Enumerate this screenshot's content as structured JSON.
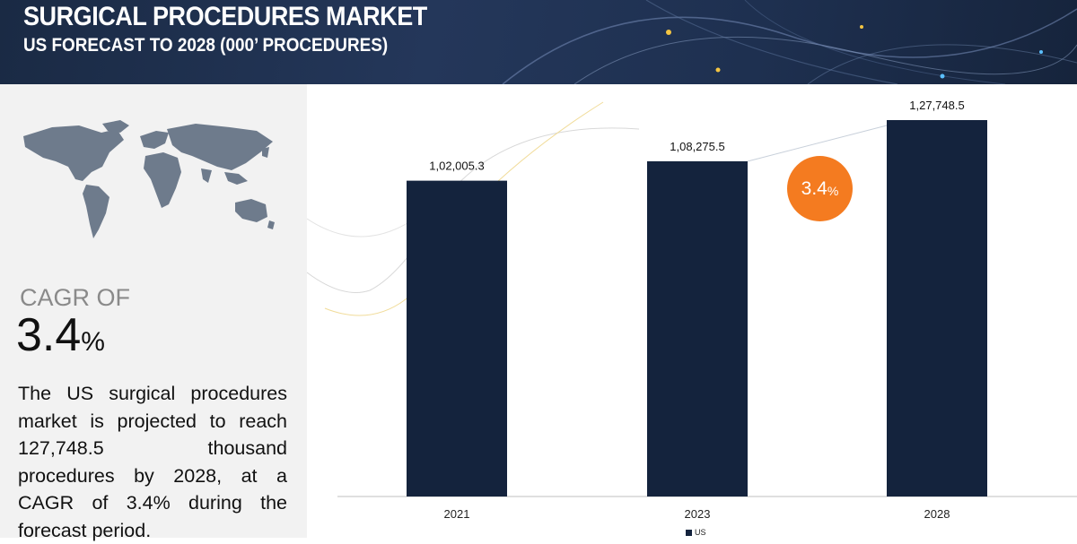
{
  "header": {
    "title": "SURGICAL PROCEDURES MARKET",
    "subtitle": "US FORECAST TO 2028 (000’ PROCEDURES)"
  },
  "left_panel": {
    "cagr_label": "CAGR OF",
    "cagr_value": "3.4",
    "cagr_unit": "%",
    "description": "The US surgical procedures market is projected to reach 127,748.5 thousand procedures by 2028, at a CAGR of 3.4% during the forecast period.",
    "map_icon": "world-map-icon"
  },
  "badge": {
    "value": "3.4",
    "unit": "%"
  },
  "colors": {
    "bar": "#14233d",
    "accent": "#f47b20",
    "header_bg": "#1e3050",
    "panel_bg": "#f2f2f2"
  },
  "chart_data": {
    "type": "bar",
    "categories": [
      "2021",
      "2023",
      "2028"
    ],
    "values": [
      102005.3,
      108275.5,
      127748.5
    ],
    "labels": [
      "1,02,005.3",
      "1,08,275.5",
      "1,27,748.5"
    ],
    "ylim": [
      0,
      165000
    ],
    "legend": [
      {
        "name": "US",
        "placement": "bottom"
      }
    ],
    "grid": false
  }
}
